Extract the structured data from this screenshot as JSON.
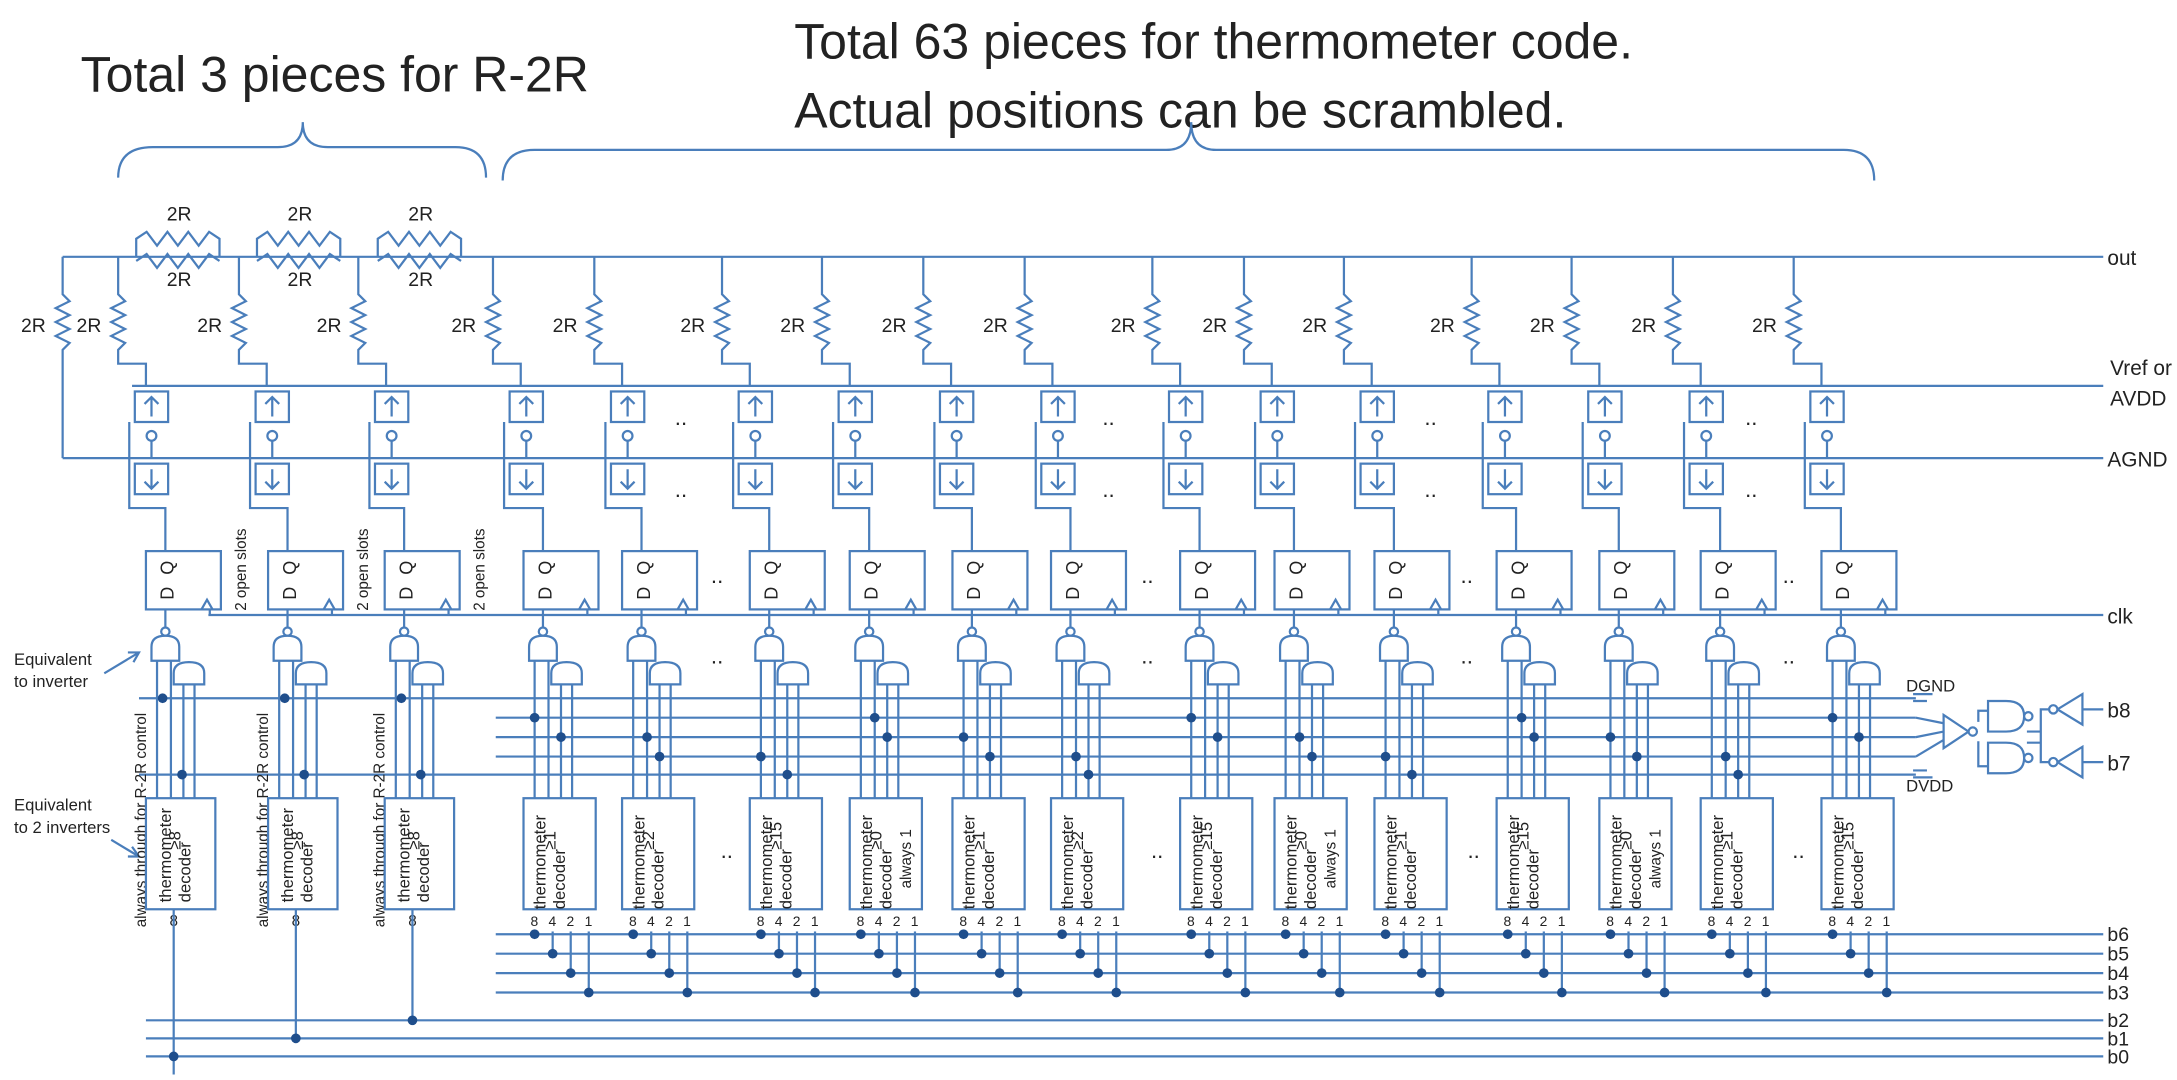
{
  "titles": {
    "r2r": "Total 3 pieces for R-2R",
    "thermometer": [
      "Total 63 pieces for thermometer code.",
      "Actual positions can be scrambled."
    ]
  },
  "notes": {
    "inverter": [
      "Equivalent",
      "to inverter"
    ],
    "two_inverters": [
      "Equivalent",
      "to 2 inverters"
    ]
  },
  "nets": {
    "out": "out",
    "vref": [
      "Vref or",
      "AVDD"
    ],
    "agnd": "AGND",
    "clk": "clk",
    "dgnd": "DGND",
    "dvdd": "DVDD",
    "upper_bits": [
      "b8",
      "b7"
    ],
    "thermo_bits": [
      "b6",
      "b5",
      "b4",
      "b3"
    ],
    "r2r_bits": [
      "b2",
      "b1",
      "b0"
    ]
  },
  "r2r_series_resistors": [
    {
      "top": "2R",
      "bottom": "2R"
    },
    {
      "top": "2R",
      "bottom": "2R"
    },
    {
      "top": "2R",
      "bottom": "2R"
    }
  ],
  "shunt_resistors": [
    "2R",
    "2R",
    "2R",
    "2R",
    "2R",
    "2R",
    "2R",
    "2R",
    "2R",
    "2R",
    "2R",
    "2R",
    "2R",
    "2R",
    "2R",
    "2R",
    "2R"
  ],
  "flip_flop": [
    "D",
    "Q"
  ],
  "ellipsis": "..",
  "r2r_slices": [
    {
      "slots": "2 open slots",
      "control": "always through for R-2R control",
      "decoder": [
        "thermometer",
        "decoder"
      ],
      "threshold": "≥8",
      "input": "8"
    },
    {
      "slots": "2 open slots",
      "control": "always through for R-2R control",
      "decoder": [
        "thermometer",
        "decoder"
      ],
      "threshold": "≥8",
      "input": "8"
    },
    {
      "slots": "2 open slots",
      "control": "always through for R-2R control",
      "decoder": [
        "thermometer",
        "decoder"
      ],
      "threshold": "≥8",
      "input": "8"
    }
  ],
  "thermo_slices": [
    {
      "decoder": [
        "thermometer",
        "decoder"
      ],
      "threshold": "≥1",
      "inputs": [
        "8",
        "4",
        "2",
        "1"
      ]
    },
    {
      "decoder": [
        "thermometer",
        "decoder"
      ],
      "threshold": "≥2",
      "inputs": [
        "8",
        "4",
        "2",
        "1"
      ]
    },
    {
      "decoder": [
        "thermometer",
        "decoder"
      ],
      "threshold": "≥15",
      "inputs": [
        "8",
        "4",
        "2",
        "1"
      ]
    },
    {
      "decoder": [
        "thermometer",
        "decoder"
      ],
      "threshold": "≥0",
      "note": "always 1",
      "inputs": [
        "8",
        "4",
        "2",
        "1"
      ]
    },
    {
      "decoder": [
        "thermometer",
        "decoder"
      ],
      "threshold": "≥1",
      "inputs": [
        "8",
        "4",
        "2",
        "1"
      ]
    },
    {
      "decoder": [
        "thermometer",
        "decoder"
      ],
      "threshold": "≥2",
      "inputs": [
        "8",
        "4",
        "2",
        "1"
      ]
    },
    {
      "decoder": [
        "thermometer",
        "decoder"
      ],
      "threshold": "≥15",
      "inputs": [
        "8",
        "4",
        "2",
        "1"
      ]
    },
    {
      "decoder": [
        "thermometer",
        "decoder"
      ],
      "threshold": "≥0",
      "note": "always 1",
      "inputs": [
        "8",
        "4",
        "2",
        "1"
      ]
    },
    {
      "decoder": [
        "thermometer",
        "decoder"
      ],
      "threshold": "≥1",
      "inputs": [
        "8",
        "4",
        "2",
        "1"
      ]
    },
    {
      "decoder": [
        "thermometer",
        "decoder"
      ],
      "threshold": "≥15",
      "inputs": [
        "8",
        "4",
        "2",
        "1"
      ]
    },
    {
      "decoder": [
        "thermometer",
        "decoder"
      ],
      "threshold": "≥0",
      "note": "always 1",
      "inputs": [
        "8",
        "4",
        "2",
        "1"
      ]
    },
    {
      "decoder": [
        "thermometer",
        "decoder"
      ],
      "threshold": "≥1",
      "inputs": [
        "8",
        "4",
        "2",
        "1"
      ]
    },
    {
      "decoder": [
        "thermometer",
        "decoder"
      ],
      "threshold": "≥15",
      "inputs": [
        "8",
        "4",
        "2",
        "1"
      ]
    }
  ]
}
